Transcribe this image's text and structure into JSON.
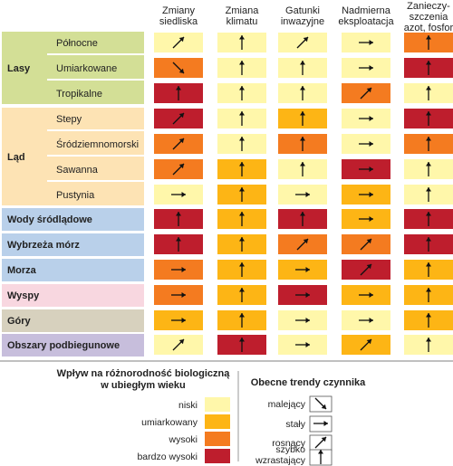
{
  "chart_data": {
    "type": "heatmap",
    "columns": [
      "Zmiany siedliska",
      "Zmiana klimatu",
      "Gatunki inwazyjne",
      "Nadmierna eksploatacja",
      "Zanieczyszczenia azot, fosfor"
    ],
    "column_header_lines": [
      [
        "Zmiany",
        "siedliska"
      ],
      [
        "Zmiana",
        "klimatu"
      ],
      [
        "Gatunki",
        "inwazyjne"
      ],
      [
        "Nadmierna",
        "eksploatacja"
      ],
      [
        "Zanieczy-",
        "szczenia",
        "azot, fosfor"
      ]
    ],
    "groups": [
      {
        "label": "Lasy",
        "rows": [
          "Północne",
          "Umiarkowane",
          "Tropikalne"
        ]
      },
      {
        "label": "Ląd",
        "rows": [
          "Stepy",
          "Śródziemnomorski",
          "Sawanna",
          "Pustynia"
        ]
      }
    ],
    "rows": [
      {
        "label": "Północne",
        "group": "Lasy",
        "impact": [
          "niski",
          "niski",
          "niski",
          "niski",
          "wysoki"
        ],
        "trend": [
          "rosnący",
          "szybko wzrastający",
          "rosnący",
          "stały",
          "szybko wzrastający"
        ]
      },
      {
        "label": "Umiarkowane",
        "group": "Lasy",
        "impact": [
          "wysoki",
          "niski",
          "niski",
          "niski",
          "bardzo wysoki"
        ],
        "trend": [
          "malejący",
          "szybko wzrastający",
          "szybko wzrastający",
          "stały",
          "szybko wzrastający"
        ]
      },
      {
        "label": "Tropikalne",
        "group": "Lasy",
        "impact": [
          "bardzo wysoki",
          "niski",
          "niski",
          "wysoki",
          "niski"
        ],
        "trend": [
          "szybko wzrastający",
          "szybko wzrastający",
          "szybko wzrastający",
          "rosnący",
          "szybko wzrastający"
        ]
      },
      {
        "label": "Stepy",
        "group": "Ląd",
        "impact": [
          "bardzo wysoki",
          "niski",
          "umiarkowany",
          "niski",
          "bardzo wysoki"
        ],
        "trend": [
          "rosnący",
          "szybko wzrastający",
          "szybko wzrastający",
          "stały",
          "szybko wzrastający"
        ]
      },
      {
        "label": "Śródziemnomorski",
        "group": "Ląd",
        "impact": [
          "wysoki",
          "niski",
          "wysoki",
          "niski",
          "wysoki"
        ],
        "trend": [
          "rosnący",
          "szybko wzrastający",
          "szybko wzrastający",
          "stały",
          "szybko wzrastający"
        ]
      },
      {
        "label": "Sawanna",
        "group": "Ląd",
        "impact": [
          "wysoki",
          "umiarkowany",
          "niski",
          "bardzo wysoki",
          "niski"
        ],
        "trend": [
          "rosnący",
          "szybko wzrastający",
          "szybko wzrastający",
          "stały",
          "szybko wzrastający"
        ]
      },
      {
        "label": "Pustynia",
        "group": "Ląd",
        "impact": [
          "niski",
          "umiarkowany",
          "niski",
          "umiarkowany",
          "niski"
        ],
        "trend": [
          "stały",
          "szybko wzrastający",
          "stały",
          "stały",
          "szybko wzrastający"
        ]
      },
      {
        "label": "Wody śródlądowe",
        "group": "",
        "impact": [
          "bardzo wysoki",
          "umiarkowany",
          "bardzo wysoki",
          "umiarkowany",
          "bardzo wysoki"
        ],
        "trend": [
          "szybko wzrastający",
          "szybko wzrastający",
          "szybko wzrastający",
          "stały",
          "szybko wzrastający"
        ]
      },
      {
        "label": "Wybrzeża mórz",
        "group": "",
        "impact": [
          "bardzo wysoki",
          "umiarkowany",
          "wysoki",
          "wysoki",
          "bardzo wysoki"
        ],
        "trend": [
          "szybko wzrastający",
          "szybko wzrastający",
          "rosnący",
          "rosnący",
          "szybko wzrastający"
        ]
      },
      {
        "label": "Morza",
        "group": "",
        "impact": [
          "wysoki",
          "umiarkowany",
          "umiarkowany",
          "bardzo wysoki",
          "umiarkowany"
        ],
        "trend": [
          "stały",
          "szybko wzrastający",
          "stały",
          "rosnący",
          "szybko wzrastający"
        ]
      },
      {
        "label": "Wyspy",
        "group": "",
        "impact": [
          "wysoki",
          "umiarkowany",
          "bardzo wysoki",
          "umiarkowany",
          "umiarkowany"
        ],
        "trend": [
          "stały",
          "szybko wzrastający",
          "stały",
          "stały",
          "szybko wzrastający"
        ]
      },
      {
        "label": "Góry",
        "group": "",
        "impact": [
          "umiarkowany",
          "umiarkowany",
          "niski",
          "niski",
          "umiarkowany"
        ],
        "trend": [
          "stały",
          "szybko wzrastający",
          "stały",
          "stały",
          "szybko wzrastający"
        ]
      },
      {
        "label": "Obszary podbiegunowe",
        "group": "",
        "impact": [
          "niski",
          "bardzo wysoki",
          "niski",
          "umiarkowany",
          "niski"
        ],
        "trend": [
          "rosnący",
          "szybko wzrastający",
          "stały",
          "rosnący",
          "szybko wzrastający"
        ]
      }
    ],
    "impact_colors": {
      "niski": "#FFF7AA",
      "umiarkowany": "#FDB515",
      "wysoki": "#F47B20",
      "bardzo wysoki": "#BE1E2D"
    },
    "row_label_colors": {
      "Lasy": "#D3DF96",
      "Ląd": "#FDE3B4",
      "Wody śródlądowe": "#B9D0EA",
      "Wybrzeża mórz": "#B9D0EA",
      "Morza": "#B9D0EA",
      "Wyspy": "#F8D7E0",
      "Góry": "#D7D1BE",
      "Obszary podbiegunowe": "#C7BEDC"
    },
    "legend_impact": {
      "title_lines": [
        "Wpływ na różnorodność biologiczną",
        "w ubiegłym wieku"
      ],
      "items": [
        "niski",
        "umiarkowany",
        "wysoki",
        "bardzo wysoki"
      ]
    },
    "legend_trend": {
      "title": "Obecne trendy czynnika",
      "items": [
        {
          "label_lines": [
            "malejący"
          ],
          "trend": "malejący"
        },
        {
          "label_lines": [
            "stały"
          ],
          "trend": "stały"
        },
        {
          "label_lines": [
            "rosnący"
          ],
          "trend": "rosnący"
        },
        {
          "label_lines": [
            "szybko",
            "wzrastający"
          ],
          "trend": "szybko wzrastający"
        }
      ]
    }
  }
}
